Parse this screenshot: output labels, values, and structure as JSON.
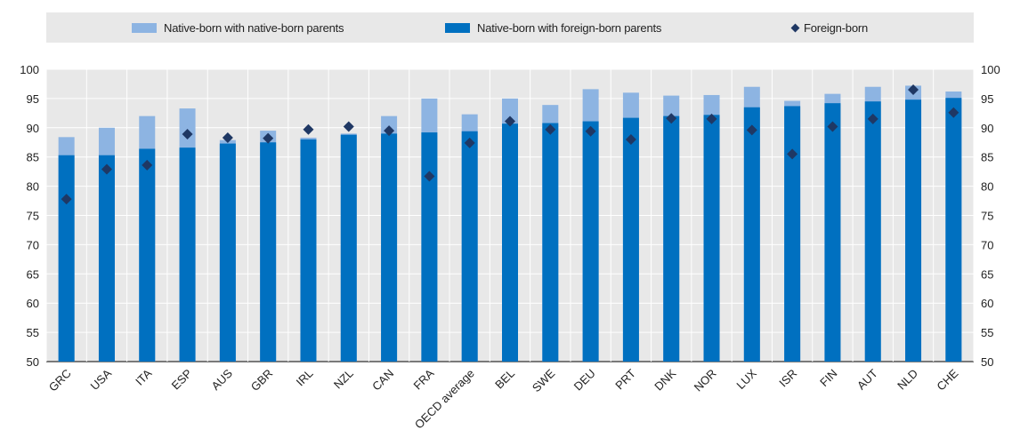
{
  "chart_data": {
    "type": "bar",
    "title": "",
    "xlabel": "",
    "ylabel": "",
    "ylim": [
      50,
      100
    ],
    "yticks": [
      50,
      55,
      60,
      65,
      70,
      75,
      80,
      85,
      90,
      95,
      100
    ],
    "secondary_y_axis": true,
    "grid": true,
    "legend_position": "top",
    "categories": [
      "GRC",
      "USA",
      "ITA",
      "ESP",
      "AUS",
      "GBR",
      "IRL",
      "NZL",
      "CAN",
      "FRA",
      "OECD average",
      "BEL",
      "SWE",
      "DEU",
      "PRT",
      "DNK",
      "NOR",
      "LUX",
      "ISR",
      "FIN",
      "AUT",
      "NLD",
      "CHE"
    ],
    "series": [
      {
        "name": "Native-born with native-born parents",
        "kind": "bar",
        "color": "#8db4e2",
        "values": [
          88.4,
          90.0,
          92.0,
          93.3,
          87.9,
          89.5,
          88.3,
          89.0,
          92.0,
          95.0,
          92.3,
          95.0,
          93.9,
          96.6,
          96.0,
          95.5,
          95.6,
          97.0,
          94.6,
          95.8,
          97.0,
          97.2,
          96.2
        ]
      },
      {
        "name": "Native-born with foreign-born parents",
        "kind": "bar",
        "color": "#0070c0",
        "values": [
          85.3,
          85.3,
          86.4,
          86.6,
          87.3,
          87.5,
          88.0,
          88.8,
          89.0,
          89.2,
          89.4,
          90.7,
          90.8,
          91.1,
          91.7,
          92.0,
          92.2,
          93.5,
          93.7,
          94.2,
          94.5,
          94.8,
          95.1
        ]
      },
      {
        "name": "Foreign-born",
        "kind": "marker",
        "color": "#1f3864",
        "values": [
          77.8,
          82.9,
          83.6,
          88.9,
          88.3,
          88.2,
          89.7,
          90.2,
          89.5,
          81.7,
          87.4,
          91.1,
          89.7,
          89.4,
          88.0,
          91.6,
          91.5,
          89.6,
          85.5,
          90.2,
          91.5,
          96.5,
          92.6
        ]
      }
    ]
  }
}
